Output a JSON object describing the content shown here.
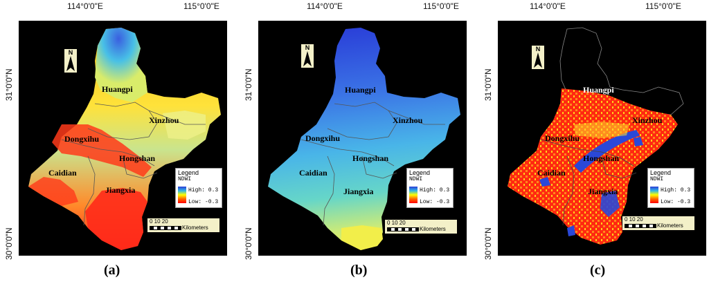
{
  "lon_labels": [
    "114°0'0\"E",
    "115°0'0\"E"
  ],
  "lat_labels": [
    "31°0'0\"N",
    "30°0'0\"N"
  ],
  "north_arrow": "N",
  "legend": {
    "title": "Legend",
    "variable": "NDWI",
    "high": "High: 0.3",
    "low": "Low: -0.3"
  },
  "scale_bar": {
    "ticks": "0   10   20",
    "unit": "Kilometers"
  },
  "districts": [
    "Huangpi",
    "Xinzhou",
    "Dongxihu",
    "Hongshan",
    "Caidian",
    "Jiangxia"
  ],
  "panels": [
    {
      "caption": "(a)"
    },
    {
      "caption": "(b)"
    },
    {
      "caption": "(c)"
    }
  ],
  "colors": {
    "background": "#000000",
    "ndwi_high": "#2c3ed6",
    "ndwi_mid": "#ffff00",
    "ndwi_low": "#ff0000",
    "boundary": "#555555",
    "scale_box": "#f3f0c8"
  }
}
